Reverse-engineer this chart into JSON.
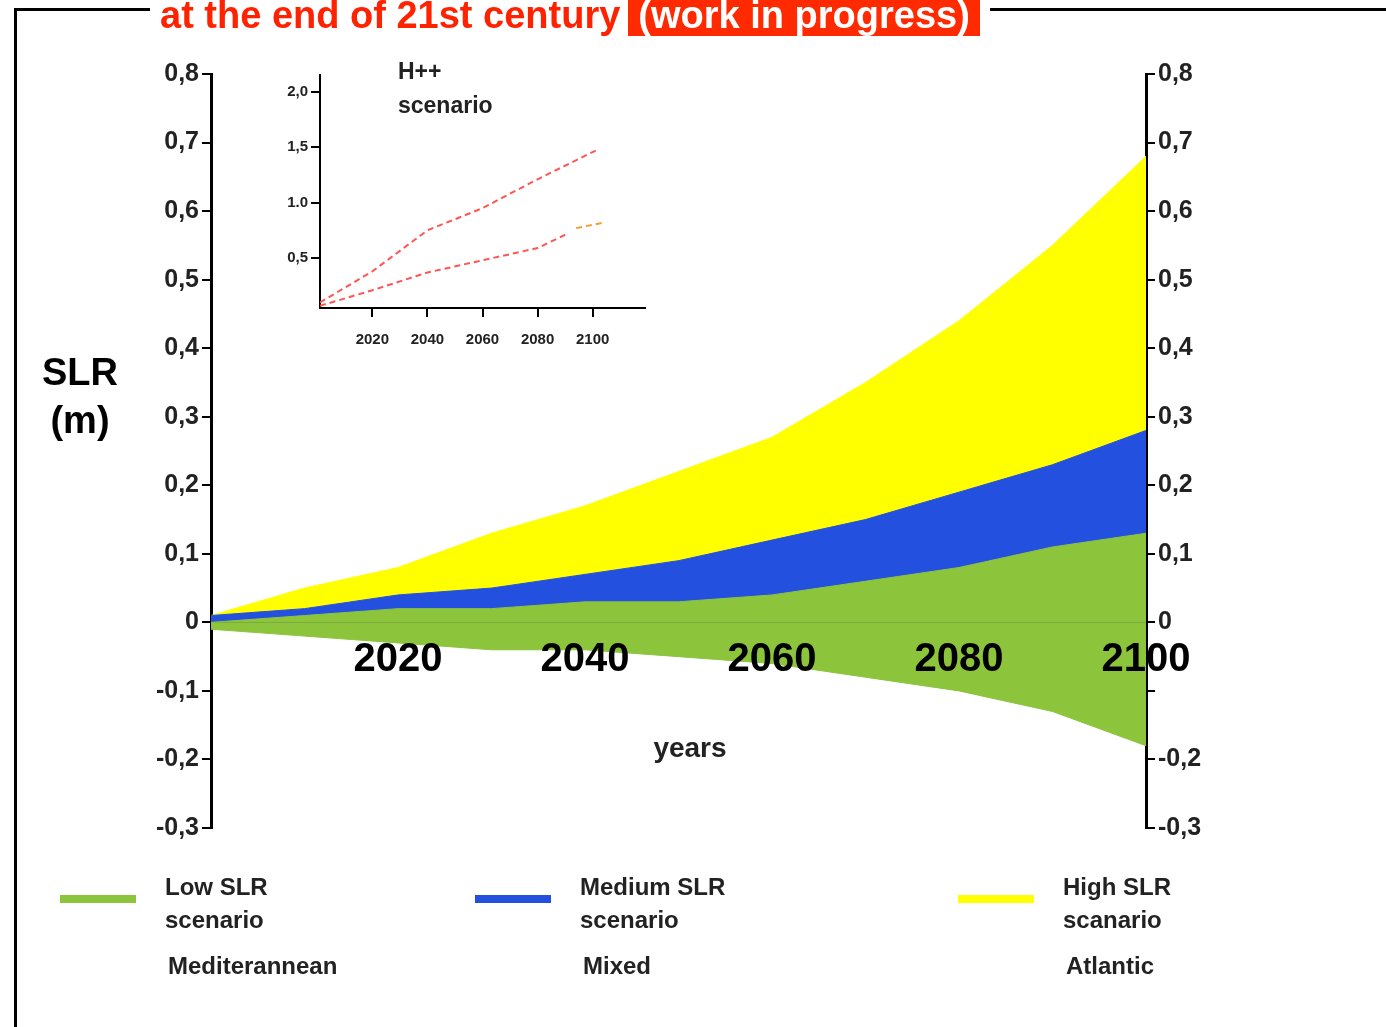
{
  "chart_data": [
    {
      "type": "area",
      "title": "at the end of 21st century",
      "subtitle": "(work in progress)",
      "xlabel": "years",
      "ylabel": "SLR (m)",
      "x": [
        2000,
        2010,
        2020,
        2030,
        2040,
        2050,
        2060,
        2070,
        2080,
        2090,
        2100
      ],
      "series": [
        {
          "name": "Low SLR scenario",
          "color": "#8cc43c",
          "values": [
            0,
            0.01,
            0.02,
            0.02,
            0.03,
            0.03,
            0.04,
            0.06,
            0.08,
            0.11,
            0.13
          ]
        },
        {
          "color": "#8cc43c",
          "values": [
            -0.01,
            -0.02,
            -0.03,
            -0.04,
            -0.04,
            -0.05,
            -0.06,
            -0.08,
            -0.1,
            -0.13,
            -0.18
          ]
        },
        {
          "name": "Medium SLR scenario",
          "color": "#2450e0",
          "values": [
            0.01,
            0.02,
            0.04,
            0.05,
            0.07,
            0.09,
            0.12,
            0.15,
            0.19,
            0.23,
            0.28
          ]
        },
        {
          "name": "High SLR scanario",
          "color": "#ffff00",
          "values": [
            0.01,
            0.05,
            0.08,
            0.13,
            0.17,
            0.22,
            0.27,
            0.35,
            0.44,
            0.55,
            0.68
          ]
        }
      ],
      "xlim": [
        2000,
        2100
      ],
      "xticks": [
        2020,
        2040,
        2060,
        2080,
        2100
      ],
      "ylim": [
        -0.3,
        0.8
      ],
      "yticks": [
        {
          "value": -0.3,
          "label": "-0,3"
        },
        {
          "value": -0.2,
          "label": "-0,2"
        },
        {
          "value": -0.1,
          "label": "-0,1"
        },
        0,
        {
          "value": 0.1,
          "label": "0,1"
        },
        {
          "value": 0.2,
          "label": "0,2"
        },
        {
          "value": 0.3,
          "label": "0,3"
        },
        {
          "value": 0.4,
          "label": "0,4"
        },
        {
          "value": 0.5,
          "label": "0,5"
        },
        {
          "value": 0.6,
          "label": "0,6"
        },
        {
          "value": 0.7,
          "label": "0,7"
        },
        {
          "value": 0.8,
          "label": "0,8"
        }
      ],
      "y2lim": [
        -0.3,
        0.8
      ],
      "y2ticks": [
        {
          "value": -0.3,
          "label": "-0,3"
        },
        {
          "value": -0.2,
          "label": "-0,2"
        },
        {
          "value": -0.1,
          "label": null
        },
        0,
        {
          "value": 0.1,
          "label": "0,1"
        },
        {
          "value": 0.2,
          "label": "0,2"
        },
        {
          "value": 0.3,
          "label": "0,3"
        },
        {
          "value": 0.4,
          "label": "0,4"
        },
        {
          "value": 0.5,
          "label": "0,5"
        },
        {
          "value": 0.6,
          "label": "0,6"
        },
        {
          "value": 0.7,
          "label": "0,7"
        },
        {
          "value": 0.8,
          "label": "0,8"
        }
      ],
      "legend": "bottom",
      "annotations": [
        "Mediterannean",
        "Mixed",
        "Atlantic"
      ]
    },
    {
      "type": "line",
      "line_style": "dashed",
      "marker": "none",
      "series": [
        {
          "color": "#ff5555",
          "x": [
            2001,
            2020,
            2040,
            2060,
            2080,
            2102
          ],
          "values": [
            0.1,
            0.38,
            0.75,
            0.95,
            1.21,
            1.48
          ]
        },
        {
          "color": "#ff5555",
          "x": [
            2001,
            2020,
            2040,
            2060,
            2080,
            2090
          ],
          "values": [
            0.07,
            0.21,
            0.37,
            0.48,
            0.59,
            0.71
          ]
        },
        {
          "color": "#f0a030",
          "x": [
            2094,
            2104
          ],
          "values": [
            0.77,
            0.82
          ]
        }
      ],
      "xlim": [
        2001,
        2119
      ],
      "xticks": [
        2020,
        2040,
        2060,
        2080,
        2100
      ],
      "ylim": [
        0.05,
        2.15
      ],
      "yticks": [
        {
          "value": 0.5,
          "label": "0,5"
        },
        {
          "value": 1.0,
          "label": "1.0"
        },
        {
          "value": 1.5,
          "label": "1,5"
        },
        {
          "value": 2.0,
          "label": "2,0"
        }
      ],
      "annotations": [
        "H++ scenario"
      ]
    }
  ]
}
